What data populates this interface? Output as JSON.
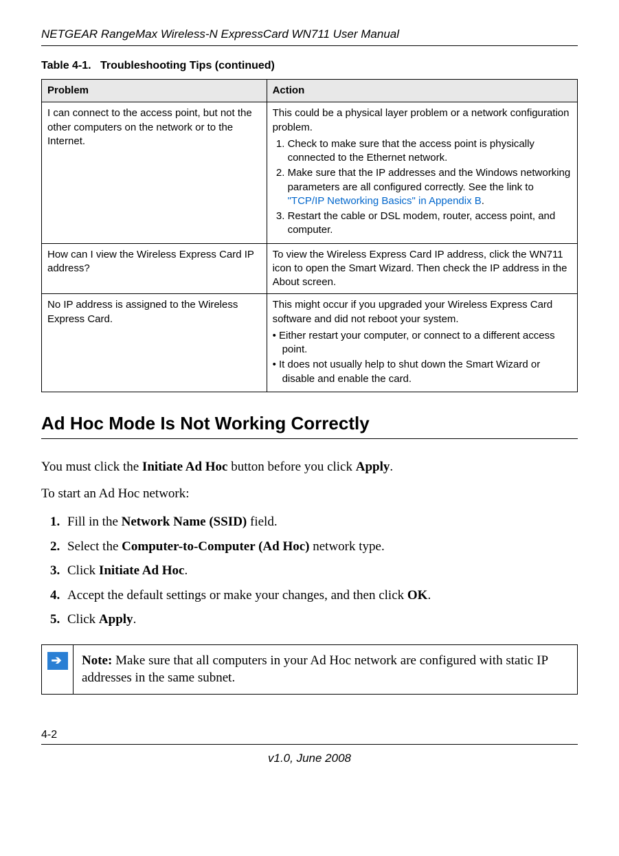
{
  "header": {
    "title": "NETGEAR RangeMax Wireless-N ExpressCard WN711 User Manual"
  },
  "table": {
    "caption_label": "Table 4-1.",
    "caption_title": "Troubleshooting Tips (continued)",
    "columns": {
      "problem": "Problem",
      "action": "Action"
    },
    "rows": {
      "r1": {
        "problem": "I can connect to the access point, but not the other computers on the network or to the Internet.",
        "action_intro": "This could be a physical layer problem or a network configuration problem.",
        "step1": "Check to make sure that the access point is physically connected to the Ethernet network.",
        "step2a": "Make sure that the IP addresses and the Windows networking parameters are all configured correctly. See the link to ",
        "step2_link": "\"TCP/IP Networking Basics\" in Appendix B",
        "step2b": ".",
        "step3": "Restart the cable or DSL modem, router, access point, and computer."
      },
      "r2": {
        "problem": "How can I view the Wireless Express Card IP address?",
        "action": "To view the Wireless Express Card IP address, click the WN711 icon to open the Smart Wizard. Then check the IP address in the About screen."
      },
      "r3": {
        "problem": "No IP address is assigned to the Wireless Express Card.",
        "action_intro": "This might occur if you upgraded your Wireless Express Card software and did not reboot your system.",
        "bullet1": "Either restart your computer, or connect to a different access point.",
        "bullet2": "It does not usually help to shut down the Smart Wizard or disable and enable the card."
      }
    }
  },
  "section": {
    "title": "Ad Hoc Mode Is Not Working Correctly",
    "intro_a": "You must click the ",
    "intro_bold1": "Initiate Ad Hoc",
    "intro_b": " button before you click ",
    "intro_bold2": "Apply",
    "intro_c": ".",
    "lead": "To start an Ad Hoc network:",
    "steps": {
      "s1a": "Fill in the ",
      "s1b": "Network Name (SSID)",
      "s1c": " field.",
      "s2a": "Select the ",
      "s2b": "Computer-to-Computer (Ad Hoc)",
      "s2c": " network type.",
      "s3a": "Click ",
      "s3b": "Initiate Ad Hoc",
      "s3c": ".",
      "s4a": "Accept the default settings or make your changes, and then click ",
      "s4b": "OK",
      "s4c": ".",
      "s5a": "Click ",
      "s5b": "Apply",
      "s5c": "."
    }
  },
  "note": {
    "label": "Note:",
    "text": " Make sure that all computers in your Ad Hoc network are configured with static IP addresses in the same subnet."
  },
  "footer": {
    "pagenum": "4-2",
    "version": "v1.0, June 2008"
  },
  "colors": {
    "link": "#0066cc",
    "note_icon_bg": "#2a7fd4",
    "th_bg": "#e8e8e8"
  }
}
